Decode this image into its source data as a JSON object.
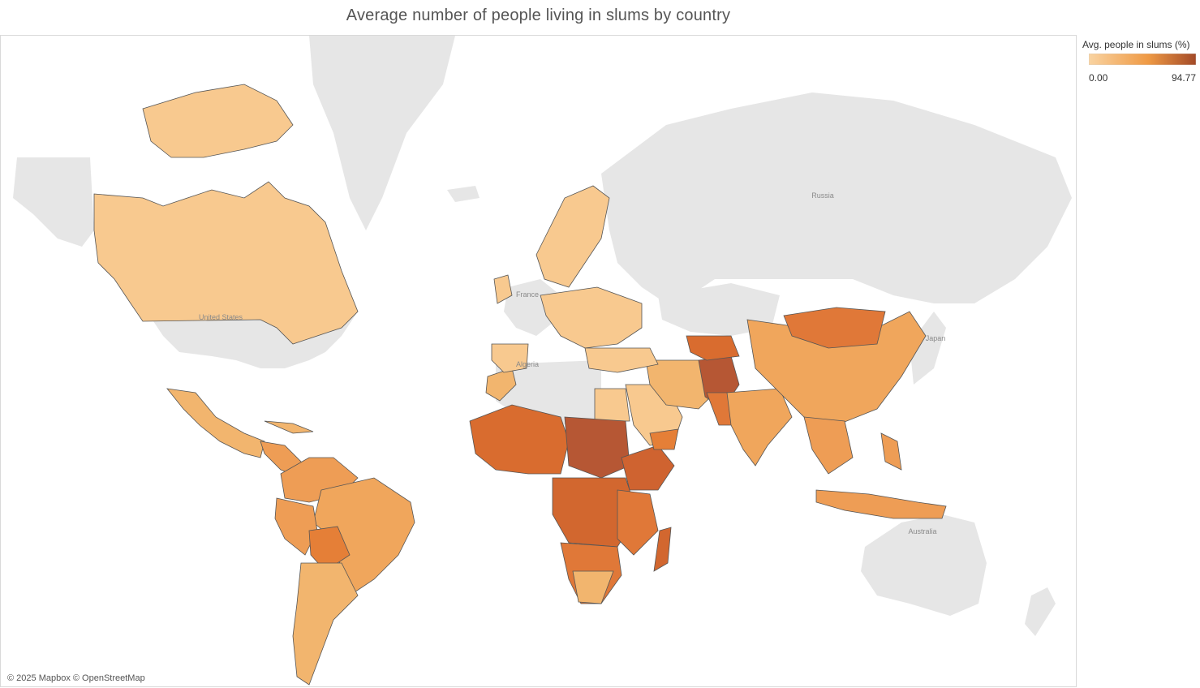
{
  "title": "Average number of people living in slums by country",
  "legend": {
    "title": "Avg. people in slums (%)",
    "min_label": "0.00",
    "max_label": "94.77",
    "color_low": "#f9d3a1",
    "color_mid": "#ef9a45",
    "color_high": "#a34a28"
  },
  "attribution": "© 2025 Mapbox © OpenStreetMap",
  "base_labels": {
    "russia": "Russia",
    "united_states": "United States",
    "france": "France",
    "algeria": "Algeria",
    "japan": "Japan",
    "australia": "Australia"
  },
  "colors": {
    "land_no_data": "#e6e6e6",
    "water": "#ffffff",
    "border": "#555555"
  },
  "chart_data": {
    "type": "choropleth",
    "value_range": [
      0.0,
      94.77
    ]
  }
}
